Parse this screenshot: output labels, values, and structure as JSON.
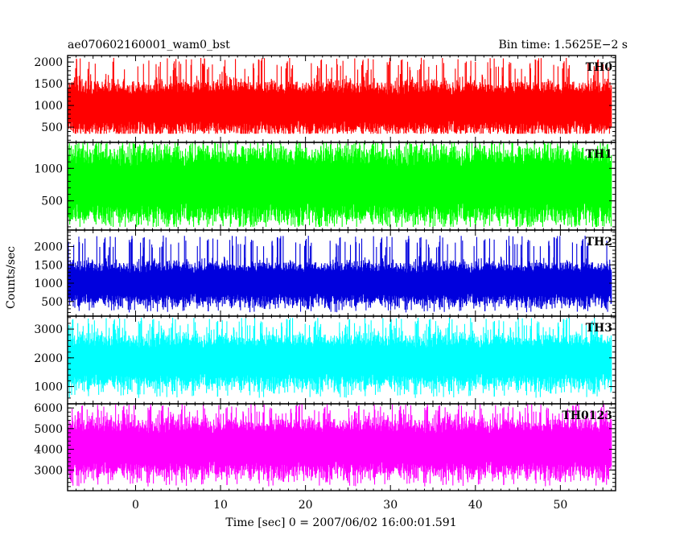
{
  "chart_data": {
    "type": "line",
    "title": "ae070602160001_wam0_bst",
    "subtitle": "Bin time: 1.5625E−2 s",
    "xlabel": "Time [sec] 0 = 2007/06/02 16:00:01.591",
    "ylabel": "Counts/sec",
    "xlim": [
      -8,
      56.5
    ],
    "xticks": [
      0,
      10,
      20,
      30,
      40,
      50
    ],
    "xtick_labels": [
      "0",
      "10",
      "20",
      "30",
      "40",
      "50"
    ],
    "x_start": -8,
    "x_end": 56,
    "bin_time": 0.015625,
    "grid": false,
    "panels": [
      {
        "name": "TH0",
        "color": "#ff0000",
        "ylim": [
          150,
          2150
        ],
        "yticks": [
          500,
          1000,
          1500,
          2000
        ],
        "ytick_labels": [
          "500",
          "1000",
          "1500",
          "2000"
        ],
        "mean": 950,
        "min": 350,
        "max": 2100,
        "envelope_low": 450,
        "envelope_high": 1500
      },
      {
        "name": "TH1",
        "color": "#00ff00",
        "ylim": [
          50,
          1400
        ],
        "yticks": [
          500,
          1000
        ],
        "ytick_labels": [
          "500",
          "1000"
        ],
        "mean": 750,
        "min": 100,
        "max": 1400,
        "envelope_low": 250,
        "envelope_high": 1250
      },
      {
        "name": "TH2",
        "color": "#0000dd",
        "ylim": [
          100,
          2450
        ],
        "yticks": [
          500,
          1000,
          1500,
          2000
        ],
        "ytick_labels": [
          "500",
          "1000",
          "1500",
          "2000"
        ],
        "mean": 1000,
        "min": 200,
        "max": 2300,
        "envelope_low": 500,
        "envelope_high": 1500
      },
      {
        "name": "TH3",
        "color": "#00ffff",
        "ylim": [
          400,
          3450
        ],
        "yticks": [
          1000,
          2000,
          3000
        ],
        "ytick_labels": [
          "1000",
          "2000",
          "3000"
        ],
        "mean": 1900,
        "min": 600,
        "max": 3400,
        "envelope_low": 1100,
        "envelope_high": 2700
      },
      {
        "name": "TH0123",
        "color": "#ff00ff",
        "ylim": [
          2000,
          6200
        ],
        "yticks": [
          3000,
          4000,
          5000,
          6000
        ],
        "ytick_labels": [
          "3000",
          "4000",
          "5000",
          "6000"
        ],
        "mean": 4100,
        "min": 2200,
        "max": 6200,
        "envelope_low": 2900,
        "envelope_high": 5300
      }
    ]
  }
}
